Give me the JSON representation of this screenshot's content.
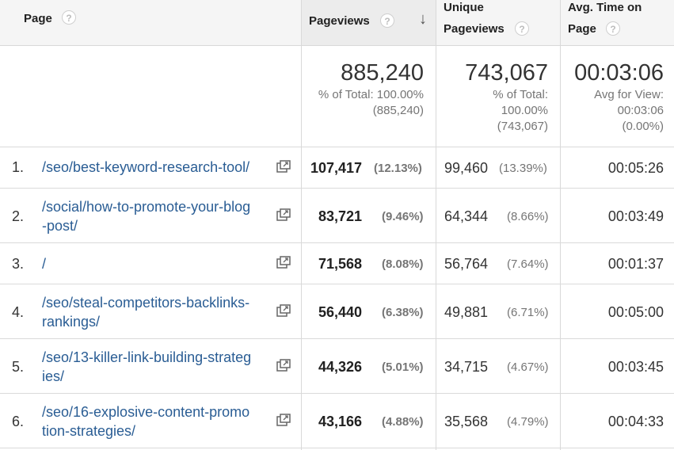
{
  "headers": {
    "page": "Page",
    "pageviews": "Pageviews",
    "unique_line1": "Unique",
    "unique_line2": "Pageviews",
    "avg_line1": "Avg. Time on",
    "avg_line2": "Page",
    "help": "?",
    "sort": "↓"
  },
  "summary": {
    "pageviews": "885,240",
    "pageviews_sub1": "% of Total: 100.00%",
    "pageviews_sub2": "(885,240)",
    "unique": "743,067",
    "unique_sub1": "% of Total:",
    "unique_sub2": "100.00%",
    "unique_sub3": "(743,067)",
    "avg": "00:03:06",
    "avg_sub1": "Avg for View:",
    "avg_sub2": "00:03:06",
    "avg_sub3": "(0.00%)"
  },
  "rows": [
    {
      "index": "1.",
      "line1": "/seo/best-keyword-research-tool/",
      "line2": "",
      "pageviews": "107,417",
      "pageviews_pct": "(12.13%)",
      "unique": "99,460",
      "unique_pct": "(13.39%)",
      "avg_time": "00:05:26"
    },
    {
      "index": "2.",
      "line1": "/social/how-to-promote-your-blog",
      "line2": "-post/",
      "pageviews": "83,721",
      "pageviews_pct": "(9.46%)",
      "unique": "64,344",
      "unique_pct": "(8.66%)",
      "avg_time": "00:03:49"
    },
    {
      "index": "3.",
      "line1": "/",
      "line2": "",
      "pageviews": "71,568",
      "pageviews_pct": "(8.08%)",
      "unique": "56,764",
      "unique_pct": "(7.64%)",
      "avg_time": "00:01:37"
    },
    {
      "index": "4.",
      "line1": "/seo/steal-competitors-backlinks-",
      "line2": "rankings/",
      "pageviews": "56,440",
      "pageviews_pct": "(6.38%)",
      "unique": "49,881",
      "unique_pct": "(6.71%)",
      "avg_time": "00:05:00"
    },
    {
      "index": "5.",
      "line1": "/seo/13-killer-link-building-strateg",
      "line2": "ies/",
      "pageviews": "44,326",
      "pageviews_pct": "(5.01%)",
      "unique": "34,715",
      "unique_pct": "(4.67%)",
      "avg_time": "00:03:45"
    },
    {
      "index": "6.",
      "line1": "/seo/16-explosive-content-promo",
      "line2": "tion-strategies/",
      "pageviews": "43,166",
      "pageviews_pct": "(4.88%)",
      "unique": "35,568",
      "unique_pct": "(4.79%)",
      "avg_time": "00:04:33"
    }
  ]
}
